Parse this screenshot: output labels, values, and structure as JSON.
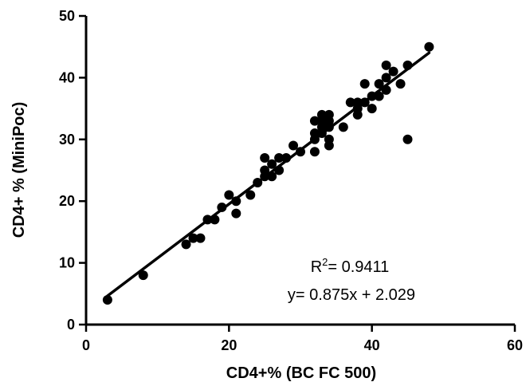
{
  "chart_data": {
    "type": "scatter",
    "xlabel": "CD4+% (BC FC 500)",
    "ylabel": "CD4+ % (MiniPoc)",
    "xlim": [
      0,
      60
    ],
    "ylim": [
      0,
      50
    ],
    "xticks": [
      0,
      20,
      40,
      60
    ],
    "yticks": [
      0,
      10,
      20,
      30,
      40,
      50
    ],
    "grid": false,
    "series": [
      {
        "points": [
          [
            3,
            4
          ],
          [
            8,
            8
          ],
          [
            14,
            13
          ],
          [
            15,
            14
          ],
          [
            16,
            14
          ],
          [
            17,
            17
          ],
          [
            18,
            17
          ],
          [
            19,
            19
          ],
          [
            20,
            21
          ],
          [
            21,
            20
          ],
          [
            21,
            18
          ],
          [
            23,
            21
          ],
          [
            24,
            23
          ],
          [
            25,
            24
          ],
          [
            25,
            25
          ],
          [
            25,
            27
          ],
          [
            26,
            24
          ],
          [
            26,
            26
          ],
          [
            27,
            25
          ],
          [
            27,
            27
          ],
          [
            28,
            27
          ],
          [
            29,
            29
          ],
          [
            30,
            28
          ],
          [
            32,
            28
          ],
          [
            32,
            30
          ],
          [
            32,
            31
          ],
          [
            32,
            33
          ],
          [
            33,
            31
          ],
          [
            33,
            32
          ],
          [
            33,
            33
          ],
          [
            33,
            34
          ],
          [
            34,
            29
          ],
          [
            34,
            30
          ],
          [
            34,
            32
          ],
          [
            34,
            33
          ],
          [
            34,
            34
          ],
          [
            36,
            32
          ],
          [
            37,
            36
          ],
          [
            38,
            34
          ],
          [
            38,
            35
          ],
          [
            38,
            36
          ],
          [
            39,
            36
          ],
          [
            39,
            39
          ],
          [
            40,
            35
          ],
          [
            40,
            37
          ],
          [
            41,
            37
          ],
          [
            41,
            39
          ],
          [
            42,
            38
          ],
          [
            42,
            40
          ],
          [
            42,
            42
          ],
          [
            43,
            41
          ],
          [
            44,
            39
          ],
          [
            45,
            42
          ],
          [
            45,
            30
          ],
          [
            48,
            45
          ]
        ]
      }
    ],
    "fit": {
      "slope": 0.875,
      "intercept": 2.029,
      "x_range": [
        3,
        48
      ]
    },
    "annotations": {
      "r2_prefix": "R",
      "r2_sup": "2",
      "r2_value": "= 0.9411",
      "equation": "y= 0.875x + 2.029"
    }
  }
}
